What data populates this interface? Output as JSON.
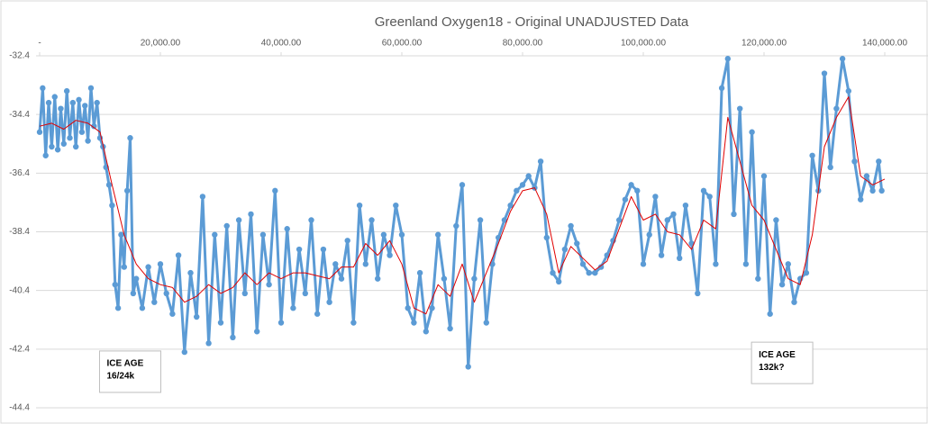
{
  "chart_data": {
    "type": "line",
    "title": "Greenland Oxygen18 - Original UNADJUSTED Data",
    "xlim": [
      0,
      140000
    ],
    "xticks": [
      {
        "value": 0,
        "label": "-"
      },
      {
        "value": 20000,
        "label": "20,000.00"
      },
      {
        "value": 40000,
        "label": "40,000.00"
      },
      {
        "value": 60000,
        "label": "60,000.00"
      },
      {
        "value": 80000,
        "label": "80,000.00"
      },
      {
        "value": 100000,
        "label": "100,000.00"
      },
      {
        "value": 120000,
        "label": "120,000.00"
      },
      {
        "value": 140000,
        "label": "140,000.00"
      }
    ],
    "ylim": [
      -44.4,
      -32.4
    ],
    "yticks": [
      -32.4,
      -34.4,
      -36.4,
      -38.4,
      -40.4,
      -42.4,
      -44.4
    ],
    "grid": true,
    "series": [
      {
        "color": "#5b9bd5",
        "marker": true,
        "x": [
          0,
          500,
          1000,
          1500,
          2000,
          2500,
          3000,
          3500,
          4000,
          4500,
          5000,
          5500,
          6000,
          6500,
          7000,
          7500,
          8000,
          8500,
          9000,
          9500,
          10000,
          10500,
          11000,
          11500,
          12000,
          12500,
          13000,
          13500,
          14000,
          14500,
          15000,
          15500,
          16000,
          17000,
          18000,
          19000,
          20000,
          21000,
          22000,
          23000,
          24000,
          25000,
          26000,
          27000,
          28000,
          29000,
          30000,
          31000,
          32000,
          33000,
          34000,
          35000,
          36000,
          37000,
          38000,
          39000,
          40000,
          41000,
          42000,
          43000,
          44000,
          45000,
          46000,
          47000,
          48000,
          49000,
          50000,
          51000,
          52000,
          53000,
          54000,
          55000,
          56000,
          57000,
          58000,
          59000,
          60000,
          61000,
          62000,
          63000,
          64000,
          65000,
          66000,
          67000,
          68000,
          69000,
          70000,
          71000,
          72000,
          73000,
          74000,
          75000,
          76000,
          77000,
          78000,
          79000,
          80000,
          81000,
          82000,
          83000,
          84000,
          85000,
          86000,
          87000,
          88000,
          89000,
          90000,
          91000,
          92000,
          93000,
          94000,
          95000,
          96000,
          97000,
          98000,
          99000,
          100000,
          101000,
          102000,
          103000,
          104000,
          105000,
          106000,
          107000,
          108000,
          109000,
          110000,
          111000,
          112000,
          113000,
          114000,
          115000,
          116000,
          117000,
          118000,
          119000,
          120000,
          121000,
          122000,
          123000,
          124000,
          125000,
          126000,
          127000,
          128000,
          129000,
          130000,
          131000,
          132000,
          133000,
          134000,
          135000,
          136000,
          137000,
          138000,
          139000,
          139500
        ],
        "values": [
          -35.0,
          -33.5,
          -35.8,
          -34.0,
          -35.5,
          -33.8,
          -35.6,
          -34.2,
          -35.4,
          -33.6,
          -35.2,
          -34.0,
          -35.5,
          -33.9,
          -35.0,
          -34.1,
          -35.3,
          -33.5,
          -34.8,
          -34.0,
          -35.2,
          -35.5,
          -36.2,
          -36.8,
          -37.5,
          -40.2,
          -41.0,
          -38.5,
          -39.6,
          -37.0,
          -35.2,
          -40.5,
          -40.0,
          -41.0,
          -39.6,
          -40.8,
          -39.5,
          -40.5,
          -41.2,
          -39.2,
          -42.5,
          -39.8,
          -41.3,
          -37.2,
          -42.2,
          -38.5,
          -41.5,
          -38.2,
          -42.0,
          -38.0,
          -40.5,
          -37.8,
          -41.8,
          -38.5,
          -40.2,
          -37.0,
          -41.5,
          -38.3,
          -41.0,
          -39.0,
          -40.5,
          -38.0,
          -41.2,
          -39.0,
          -40.8,
          -39.5,
          -40.0,
          -38.7,
          -41.5,
          -37.5,
          -39.5,
          -38.0,
          -40.0,
          -38.5,
          -39.2,
          -37.5,
          -38.5,
          -41.0,
          -41.5,
          -39.8,
          -41.8,
          -41.0,
          -38.5,
          -40.0,
          -41.7,
          -38.2,
          -36.8,
          -43.0,
          -40.0,
          -38.0,
          -41.5,
          -39.5,
          -38.6,
          -38.0,
          -37.5,
          -37.0,
          -36.8,
          -36.5,
          -36.9,
          -36.0,
          -38.6,
          -39.8,
          -40.1,
          -39.0,
          -38.2,
          -38.8,
          -39.5,
          -39.8,
          -39.8,
          -39.6,
          -39.2,
          -38.7,
          -38.0,
          -37.3,
          -36.8,
          -37.0,
          -39.5,
          -38.5,
          -37.2,
          -39.2,
          -38.0,
          -37.8,
          -39.3,
          -37.5,
          -38.8,
          -40.5,
          -37.0,
          -37.2,
          -39.5,
          -33.5,
          -32.5,
          -37.8,
          -34.2,
          -39.5,
          -35.0,
          -40.0,
          -36.5,
          -41.2,
          -38.0,
          -40.2,
          -39.5,
          -40.8,
          -40.0,
          -39.8,
          -35.8,
          -37.0,
          -33.0,
          -36.2,
          -34.2,
          -32.5,
          -33.6,
          -36.0,
          -37.3,
          -36.5,
          -37.0,
          -36.0,
          -37.0
        ]
      },
      {
        "color": "#e00000",
        "marker": false,
        "x": [
          0,
          2000,
          4000,
          6000,
          8000,
          10000,
          12000,
          14000,
          16000,
          18000,
          20000,
          22000,
          24000,
          26000,
          28000,
          30000,
          32000,
          34000,
          36000,
          38000,
          40000,
          42000,
          44000,
          46000,
          48000,
          50000,
          52000,
          54000,
          56000,
          58000,
          60000,
          62000,
          64000,
          66000,
          68000,
          70000,
          72000,
          74000,
          76000,
          78000,
          80000,
          82000,
          84000,
          86000,
          88000,
          90000,
          92000,
          94000,
          96000,
          98000,
          100000,
          102000,
          104000,
          106000,
          108000,
          110000,
          112000,
          114000,
          116000,
          118000,
          120000,
          122000,
          124000,
          126000,
          128000,
          130000,
          132000,
          134000,
          136000,
          138000,
          140000
        ],
        "values": [
          -34.8,
          -34.7,
          -34.9,
          -34.6,
          -34.7,
          -35.0,
          -36.8,
          -38.5,
          -39.5,
          -40.0,
          -40.2,
          -40.3,
          -40.8,
          -40.6,
          -40.2,
          -40.5,
          -40.3,
          -39.8,
          -40.2,
          -39.8,
          -40.0,
          -39.8,
          -39.8,
          -39.9,
          -40.0,
          -39.6,
          -39.6,
          -38.8,
          -39.2,
          -38.7,
          -39.5,
          -41.0,
          -41.2,
          -40.2,
          -40.6,
          -39.5,
          -40.8,
          -39.8,
          -38.8,
          -37.7,
          -37.0,
          -36.9,
          -37.8,
          -39.8,
          -38.9,
          -39.3,
          -39.7,
          -39.4,
          -38.3,
          -37.2,
          -38.0,
          -37.8,
          -38.4,
          -38.5,
          -39.0,
          -38.0,
          -38.3,
          -34.5,
          -36.0,
          -37.5,
          -38.0,
          -39.0,
          -40.0,
          -40.2,
          -38.5,
          -35.5,
          -34.5,
          -33.8,
          -36.5,
          -36.8,
          -36.6
        ]
      }
    ],
    "annotations": [
      {
        "lines": [
          "ICE AGE",
          "16/24k"
        ],
        "x": 15000,
        "y": -43.2
      },
      {
        "lines": [
          "ICE AGE",
          "132k?"
        ],
        "x": 123000,
        "y": -42.9
      }
    ]
  }
}
